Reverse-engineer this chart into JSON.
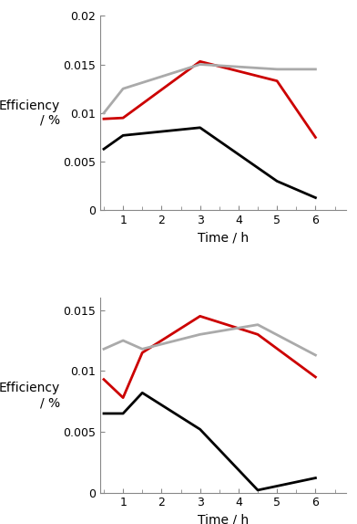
{
  "plot1": {
    "time": [
      0.5,
      1,
      3,
      5,
      6
    ],
    "black": [
      0.0063,
      0.0077,
      0.0085,
      0.003,
      0.0013
    ],
    "red": [
      0.0094,
      0.0095,
      0.0153,
      0.0133,
      0.0075
    ],
    "grey": [
      0.01,
      0.0125,
      0.015,
      0.0145,
      0.0145
    ],
    "ylim": [
      0,
      0.02
    ],
    "yticks": [
      0,
      0.005,
      0.01,
      0.015,
      0.02
    ],
    "ylabel_line1": "Efficiency",
    "ylabel_line2": "/ %",
    "xlabel": "Time / h",
    "xlim": [
      0.4,
      6.8
    ],
    "xticks": [
      1,
      2,
      3,
      4,
      5,
      6
    ]
  },
  "plot2": {
    "time": [
      0.5,
      1,
      1.5,
      3,
      4.5,
      6
    ],
    "black": [
      0.0065,
      0.0065,
      0.0082,
      0.0052,
      0.0002,
      0.0012
    ],
    "red": [
      0.0093,
      0.0078,
      0.0115,
      0.0145,
      0.013,
      0.0095
    ],
    "grey": [
      0.0118,
      0.0125,
      0.0118,
      0.013,
      0.0138,
      0.0113
    ],
    "ylim": [
      0,
      0.016
    ],
    "yticks": [
      0,
      0.005,
      0.01,
      0.015
    ],
    "ylabel_line1": "Efficiency",
    "ylabel_line2": "/ %",
    "xlabel": "Time / h",
    "xlim": [
      0.4,
      6.8
    ],
    "xticks": [
      1,
      2,
      3,
      4,
      5,
      6
    ]
  },
  "black_color": "#000000",
  "red_color": "#cc0000",
  "grey_color": "#aaaaaa",
  "linewidth": 2.0,
  "bg_color": "#ffffff",
  "spine_color": "#888888",
  "tick_label_size": 9,
  "axis_label_size": 10
}
